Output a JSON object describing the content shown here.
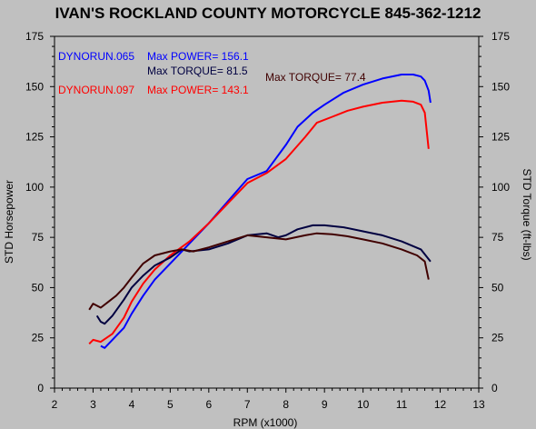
{
  "chart_data": {
    "type": "line",
    "title": "IVAN'S ROCKLAND COUNTY MOTORCYCLE 845-362-1212",
    "xlabel": "RPM (x1000)",
    "ylabel_left": "STD Horsepower",
    "ylabel_right": "STD Torque (ft-lbs)",
    "xlim": [
      2,
      13
    ],
    "ylim": [
      0,
      175
    ],
    "x_ticks": [
      "2",
      "3",
      "4",
      "5",
      "6",
      "7",
      "8",
      "9",
      "10",
      "11",
      "12",
      "13"
    ],
    "y_ticks": [
      "0",
      "25",
      "50",
      "75",
      "100",
      "125",
      "150",
      "175"
    ],
    "grid": false,
    "colors": {
      "run065_power": "#0000ff",
      "run065_torque": "#000040",
      "run097_power": "#ff0000",
      "run097_torque": "#400000"
    },
    "annotations": {
      "run065_name": "DYNORUN.065",
      "run065_power": "Max POWER= 156.1",
      "run065_torque": "Max TORQUE= 81.5",
      "run097_name": "DYNORUN.097",
      "run097_power": "Max POWER= 143.1",
      "run097_torque": "Max TORQUE= 77.4"
    },
    "series": [
      {
        "id": "run065_power",
        "x": [
          3.2,
          3.3,
          3.5,
          3.8,
          4.0,
          4.3,
          4.6,
          5.0,
          5.5,
          6.0,
          6.5,
          7.0,
          7.5,
          8.0,
          8.3,
          8.7,
          9.0,
          9.5,
          10.0,
          10.5,
          11.0,
          11.3,
          11.5,
          11.6,
          11.7,
          11.75
        ],
        "y": [
          21,
          20,
          24,
          30,
          37,
          46,
          54,
          62,
          72,
          82,
          93,
          104,
          108,
          121,
          130,
          137,
          141,
          147,
          151,
          154,
          156,
          156,
          155,
          153,
          148,
          142
        ]
      },
      {
        "id": "run097_power",
        "x": [
          2.9,
          3.0,
          3.2,
          3.5,
          3.8,
          4.0,
          4.3,
          4.6,
          5.0,
          5.5,
          6.0,
          6.5,
          7.0,
          7.5,
          8.0,
          8.5,
          8.8,
          9.2,
          9.6,
          10.0,
          10.5,
          11.0,
          11.3,
          11.5,
          11.6,
          11.7
        ],
        "y": [
          22,
          24,
          23,
          27,
          35,
          43,
          52,
          59,
          66,
          73,
          82,
          92,
          102,
          107,
          114,
          125,
          132,
          135,
          138,
          140,
          142,
          143,
          142.5,
          141,
          137,
          119
        ]
      },
      {
        "id": "run065_torque",
        "x": [
          3.1,
          3.2,
          3.3,
          3.5,
          3.8,
          4.0,
          4.3,
          4.6,
          5.0,
          5.3,
          5.5,
          6.0,
          6.5,
          7.0,
          7.5,
          7.8,
          8.0,
          8.3,
          8.7,
          9.0,
          9.5,
          10.0,
          10.5,
          11.0,
          11.5,
          11.75
        ],
        "y": [
          36,
          33,
          32,
          36,
          44,
          50,
          56,
          61,
          65,
          69,
          68,
          69,
          72,
          76,
          77,
          75,
          76,
          79,
          81,
          81,
          80,
          78,
          76,
          73,
          69,
          63
        ]
      },
      {
        "id": "run097_torque",
        "x": [
          2.9,
          3.0,
          3.2,
          3.4,
          3.6,
          3.8,
          4.0,
          4.3,
          4.6,
          5.0,
          5.3,
          5.6,
          6.0,
          6.5,
          7.0,
          7.5,
          8.0,
          8.5,
          8.8,
          9.2,
          9.6,
          10.0,
          10.5,
          11.0,
          11.4,
          11.6,
          11.7
        ],
        "y": [
          39,
          42,
          40,
          43,
          46,
          50,
          55,
          62,
          66,
          68,
          69,
          68,
          70,
          73,
          76,
          75,
          74,
          76,
          77,
          76.5,
          75.5,
          74,
          72,
          69,
          66,
          63,
          54
        ]
      }
    ]
  }
}
